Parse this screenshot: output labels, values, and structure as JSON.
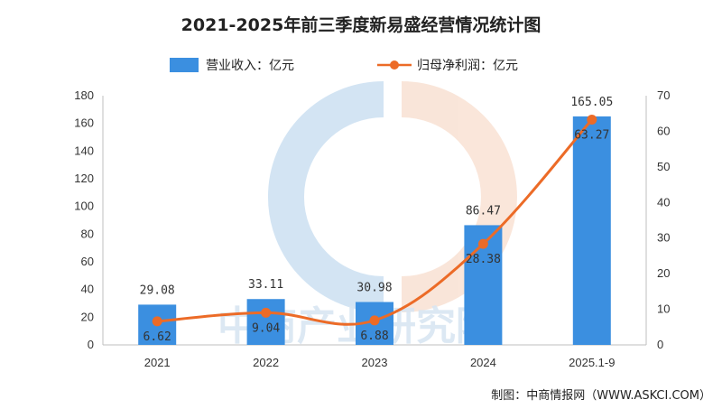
{
  "chart_data": {
    "type": "bar+line",
    "title": "2021-2025年前三季度新易盛经营情况统计图",
    "categories": [
      "2021",
      "2022",
      "2023",
      "2024",
      "2025.1-9"
    ],
    "series": [
      {
        "name": "营业收入：亿元",
        "type": "bar",
        "axis": "left",
        "values": [
          29.08,
          33.11,
          30.98,
          86.47,
          165.05
        ],
        "color": "#3b8fe0"
      },
      {
        "name": "归母净利润：亿元",
        "type": "line",
        "axis": "right",
        "values": [
          6.62,
          9.04,
          6.88,
          28.38,
          63.27
        ],
        "color": "#ec6b27"
      }
    ],
    "left_axis": {
      "range": [
        0,
        180
      ],
      "ticks": [
        "0",
        "20",
        "40",
        "60",
        "80",
        "100",
        "120",
        "140",
        "160",
        "180"
      ]
    },
    "right_axis": {
      "range": [
        0,
        70
      ],
      "ticks": [
        "0",
        "10",
        "20",
        "30",
        "40",
        "50",
        "60",
        "70"
      ]
    },
    "bar_labels": [
      "29.08",
      "33.11",
      "30.98",
      "86.47",
      "165.05"
    ],
    "line_labels": [
      "6.62",
      "9.04",
      "6.88",
      "28.38",
      "63.27"
    ],
    "legend_position": "top-center",
    "grid": false
  },
  "watermark": "中商产业研究院",
  "source": "制图：中商情报网（WWW.ASKCI.COM）",
  "colors": {
    "bar": "#3b8fe0",
    "line": "#ec6b27",
    "axis": "#bfbfbf"
  }
}
